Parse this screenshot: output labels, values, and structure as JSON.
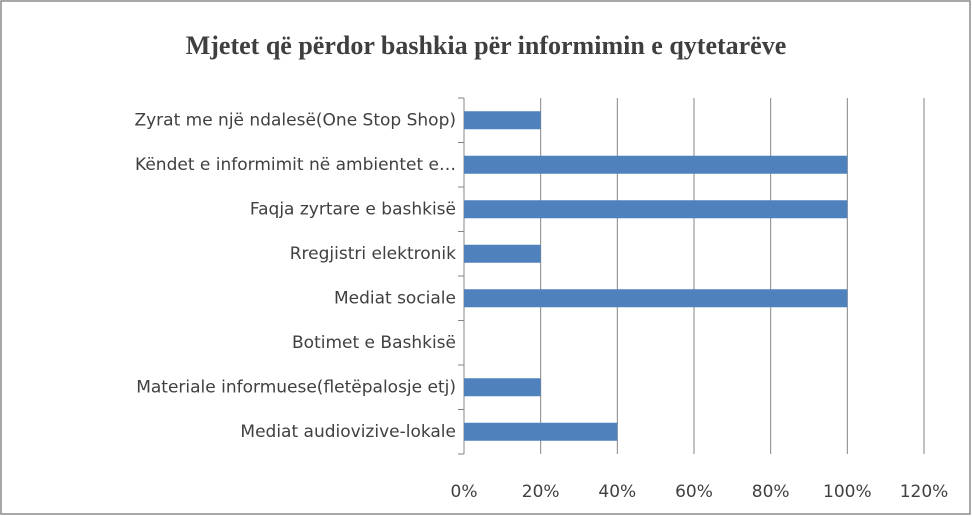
{
  "chart_data": {
    "type": "bar",
    "orientation": "horizontal",
    "title": "Mjetet që përdor bashkia për informimin e qytetarëve",
    "categories": [
      "Zyrat me një ndalesë(One Stop Shop)",
      "Këndet e informimit në ambientet e…",
      "Faqja zyrtare e bashkisë",
      "Rregjistri elektronik",
      "Mediat sociale",
      "Botimet e Bashkisë",
      "Materiale informuese(fletëpalosje etj)",
      "Mediat audiovizive-lokale"
    ],
    "values": [
      20,
      100,
      100,
      20,
      100,
      0,
      20,
      40
    ],
    "color": "#4f81bd",
    "xlim": [
      0,
      120
    ],
    "xticks": [
      {
        "value": 0,
        "label": "0%"
      },
      {
        "value": 20,
        "label": "20%"
      },
      {
        "value": 40,
        "label": "40%"
      },
      {
        "value": 60,
        "label": "60%"
      },
      {
        "value": 80,
        "label": "80%"
      },
      {
        "value": 100,
        "label": "100%"
      },
      {
        "value": 120,
        "label": "120%"
      }
    ],
    "grid": true
  }
}
